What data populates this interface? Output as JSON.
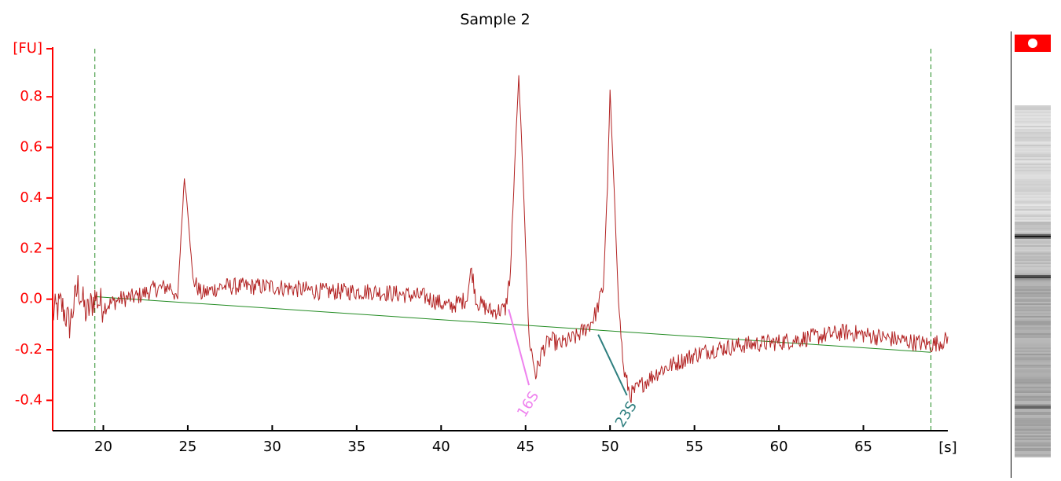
{
  "chart_data": {
    "type": "line",
    "title": "Sample 2",
    "ylabel": "[FU]",
    "xlabel": "[s]",
    "xlim": [
      17.0,
      70.0
    ],
    "ylim": [
      -0.52,
      0.99
    ],
    "xticks": [
      20,
      25,
      30,
      35,
      40,
      45,
      50,
      55,
      60,
      65
    ],
    "yticks": [
      -0.4,
      -0.2,
      0.0,
      0.2,
      0.4,
      0.6,
      0.8
    ],
    "ytick_labels": [
      "-0.4",
      "-0.2",
      "0.0",
      "0.2",
      "0.4",
      "0.6",
      "0.8"
    ],
    "axis_color": "#ff0000",
    "trace_color": "#b22222",
    "baseline": {
      "x": [
        19.5,
        69.0
      ],
      "y": [
        0.01,
        -0.21
      ],
      "color": "#228b22"
    },
    "time_window": {
      "x": [
        19.5,
        69.0
      ],
      "color": "#228b22"
    },
    "trace_anchors": [
      [
        17.0,
        -0.06
      ],
      [
        17.5,
        -0.02
      ],
      [
        18.0,
        -0.1
      ],
      [
        18.5,
        0.05
      ],
      [
        19.0,
        -0.06
      ],
      [
        19.5,
        0.01
      ],
      [
        20.0,
        -0.03
      ],
      [
        21.0,
        0.0
      ],
      [
        22.0,
        0.01
      ],
      [
        23.0,
        0.04
      ],
      [
        24.0,
        0.05
      ],
      [
        24.4,
        0.0
      ],
      [
        24.6,
        0.25
      ],
      [
        24.8,
        0.48
      ],
      [
        25.0,
        0.35
      ],
      [
        25.3,
        0.08
      ],
      [
        25.8,
        0.02
      ],
      [
        27.0,
        0.05
      ],
      [
        30.0,
        0.05
      ],
      [
        33.0,
        0.03
      ],
      [
        36.0,
        0.03
      ],
      [
        39.0,
        0.01
      ],
      [
        40.5,
        -0.03
      ],
      [
        41.5,
        0.0
      ],
      [
        41.8,
        0.12
      ],
      [
        42.1,
        -0.01
      ],
      [
        43.0,
        -0.05
      ],
      [
        43.8,
        -0.04
      ],
      [
        44.1,
        0.1
      ],
      [
        44.4,
        0.6
      ],
      [
        44.6,
        0.88
      ],
      [
        44.9,
        0.4
      ],
      [
        45.2,
        -0.15
      ],
      [
        45.6,
        -0.3
      ],
      [
        46.0,
        -0.2
      ],
      [
        46.5,
        -0.16
      ],
      [
        47.0,
        -0.18
      ],
      [
        48.0,
        -0.15
      ],
      [
        48.8,
        -0.1
      ],
      [
        49.2,
        -0.05
      ],
      [
        49.6,
        0.05
      ],
      [
        49.85,
        0.45
      ],
      [
        50.0,
        0.82
      ],
      [
        50.2,
        0.5
      ],
      [
        50.5,
        0.0
      ],
      [
        50.8,
        -0.28
      ],
      [
        51.2,
        -0.38
      ],
      [
        52.0,
        -0.33
      ],
      [
        53.0,
        -0.28
      ],
      [
        54.0,
        -0.25
      ],
      [
        55.0,
        -0.22
      ],
      [
        56.0,
        -0.2
      ],
      [
        58.0,
        -0.18
      ],
      [
        60.0,
        -0.17
      ],
      [
        62.0,
        -0.15
      ],
      [
        64.0,
        -0.13
      ],
      [
        66.0,
        -0.15
      ],
      [
        68.0,
        -0.17
      ],
      [
        69.0,
        -0.18
      ],
      [
        70.0,
        -0.16
      ]
    ],
    "annotations": [
      {
        "label": "16S",
        "color": "#ee82ee",
        "from": [
          44.0,
          -0.04
        ],
        "to": [
          45.2,
          -0.34
        ]
      },
      {
        "label": "23S",
        "color": "#2f7f7f",
        "from": [
          49.3,
          -0.14
        ],
        "to": [
          51.0,
          -0.38
        ]
      }
    ],
    "gel": {
      "marker_color": "#ff0000",
      "bands": [
        {
          "pos": 0.37,
          "intensity": 0.95
        },
        {
          "pos": 0.485,
          "intensity": 0.9
        },
        {
          "pos": 0.855,
          "intensity": 0.75
        }
      ]
    }
  }
}
